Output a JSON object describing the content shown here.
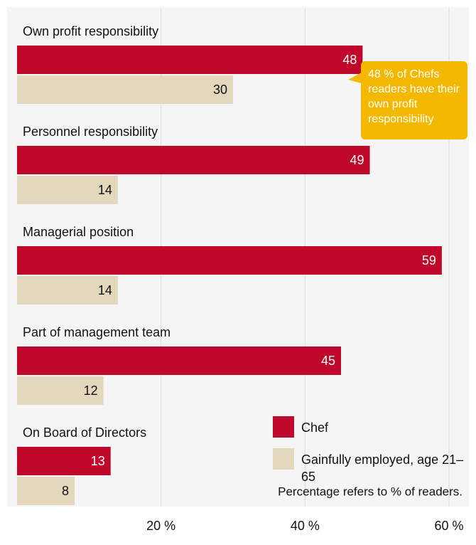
{
  "chart_data": {
    "type": "bar",
    "orientation": "horizontal",
    "categories": [
      "Own profit responsibility",
      "Personnel responsibility",
      "Managerial position",
      "Part of management team",
      "On Board of Directors"
    ],
    "series": [
      {
        "name": "Chef",
        "color": "#c0082a",
        "values": [
          48,
          49,
          59,
          45,
          13
        ]
      },
      {
        "name": "Gainfully employed, age 21–65",
        "color": "#e3d7bd",
        "values": [
          30,
          14,
          14,
          12,
          8
        ]
      }
    ],
    "xlim": [
      0,
      60
    ],
    "xticks": [
      {
        "value": 20,
        "label": "20 %"
      },
      {
        "value": 40,
        "label": "40 %"
      },
      {
        "value": 60,
        "label": "60 %"
      }
    ],
    "grid": true,
    "legend": "bottom-right",
    "annotation": "48 % of Chefs readers have their own profit responsibility",
    "note": "Percentage refers to % of readers."
  }
}
